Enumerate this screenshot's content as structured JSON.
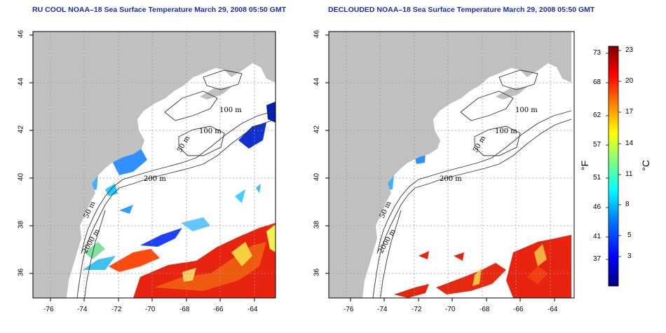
{
  "left_panel": {
    "title": "RU COOL NOAA–18 Sea Surface Temperature March 29, 2008 05:50 GMT"
  },
  "right_panel": {
    "title": "DECLOUDED NOAA–18 Sea Surface Temperature March 29, 2008 05:50 GMT"
  },
  "axes": {
    "x_ticks": [
      "-76",
      "-74",
      "-72",
      "-70",
      "-68",
      "-66",
      "-64"
    ],
    "y_ticks": [
      "36",
      "38",
      "40",
      "42",
      "44",
      "46"
    ]
  },
  "contour_labels": {
    "left": [
      "100 m",
      "100 m",
      "50 m",
      "200 m",
      "50 m",
      "2000 m"
    ],
    "right": [
      "100 m",
      "100 m",
      "50 m",
      "200 m",
      "50 m",
      "2000 m"
    ]
  },
  "colorbar": {
    "fahrenheit_ticks": [
      "73",
      "68",
      "62",
      "57",
      "51",
      "46",
      "41",
      "37"
    ],
    "celsius_ticks": [
      "23",
      "20",
      "17",
      "14",
      "11",
      "8",
      "5",
      "3"
    ],
    "fahrenheit_label": "°F",
    "celsius_label": "°C",
    "colors": [
      "#00007f",
      "#0000ff",
      "#0080ff",
      "#00ffff",
      "#80ff80",
      "#ffff00",
      "#ff8000",
      "#ff0000",
      "#7f0000"
    ]
  },
  "colors": {
    "land": "#c0c0c0",
    "title": "#1a2ea8"
  }
}
